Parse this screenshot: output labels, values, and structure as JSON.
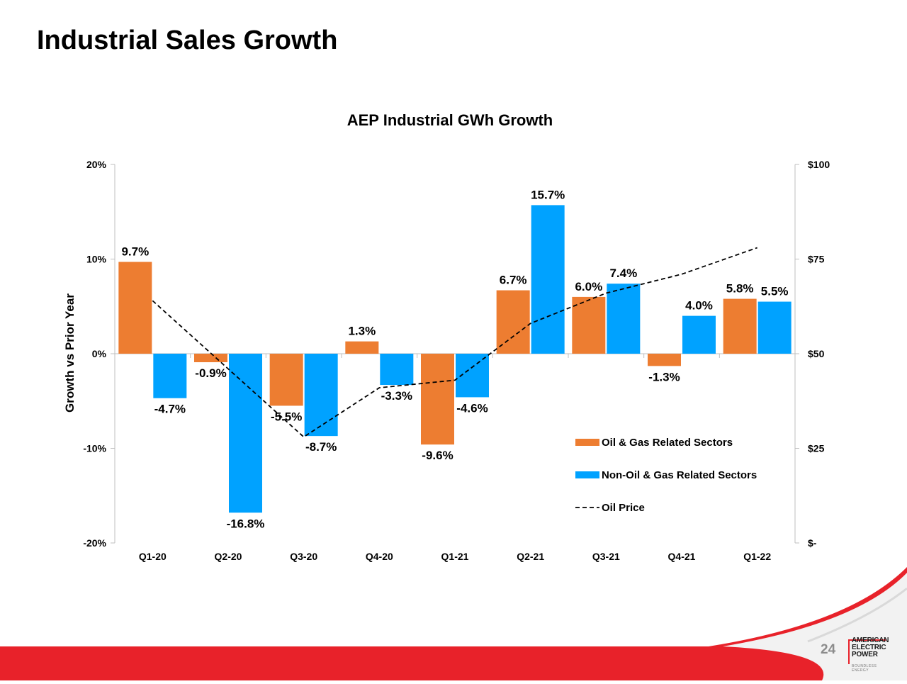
{
  "slide": {
    "title": "Industrial Sales Growth",
    "page_number": "24"
  },
  "logo": {
    "line1": "AMERICAN",
    "line2": "ELECTRIC",
    "line3": "POWER",
    "tagline": "BOUNDLESS ENERGY"
  },
  "colors": {
    "oil_gas": "#ED7D31",
    "non_oil_gas": "#00A2FF",
    "oil_price": "#000000",
    "footer_red": "#E8222A"
  },
  "chart_data": {
    "type": "bar",
    "title": "AEP Industrial GWh Growth",
    "ylabel": "Growth vs Prior Year",
    "categories": [
      "Q1-20",
      "Q2-20",
      "Q3-20",
      "Q4-20",
      "Q1-21",
      "Q2-21",
      "Q3-21",
      "Q4-21",
      "Q1-22"
    ],
    "series": [
      {
        "name": "Oil & Gas Related Sectors",
        "kind": "bar",
        "axis": "left",
        "values": [
          9.7,
          -0.9,
          -5.5,
          1.3,
          -9.6,
          6.7,
          6.0,
          -1.3,
          5.8
        ],
        "labels": [
          "9.7%",
          "-0.9%",
          "-5.5%",
          "1.3%",
          "-9.6%",
          "6.7%",
          "6.0%",
          "-1.3%",
          "5.8%"
        ]
      },
      {
        "name": "Non-Oil & Gas Related Sectors",
        "kind": "bar",
        "axis": "left",
        "values": [
          -4.7,
          -16.8,
          -8.7,
          -3.3,
          -4.6,
          15.7,
          7.4,
          4.0,
          5.5
        ],
        "labels": [
          "-4.7%",
          "-16.8%",
          "-8.7%",
          "-3.3%",
          "-4.6%",
          "15.7%",
          "7.4%",
          "4.0%",
          "5.5%"
        ]
      },
      {
        "name": "Oil Price",
        "kind": "line",
        "style": "dashed",
        "axis": "right",
        "values": [
          64,
          46,
          28,
          41,
          43,
          58,
          66,
          71,
          78
        ]
      }
    ],
    "y_left": {
      "range": [
        -20,
        20
      ],
      "ticks": [
        20,
        10,
        0,
        -10,
        -20
      ],
      "tick_labels": [
        "20%",
        "10%",
        "0%",
        "-10%",
        "-20%"
      ]
    },
    "y_right": {
      "range": [
        0,
        100
      ],
      "ticks": [
        100,
        75,
        50,
        25,
        0
      ],
      "tick_labels": [
        "$100",
        "$75",
        "$50",
        "$25",
        "$-"
      ]
    },
    "grid": false,
    "legend_position": "bottom-right"
  }
}
